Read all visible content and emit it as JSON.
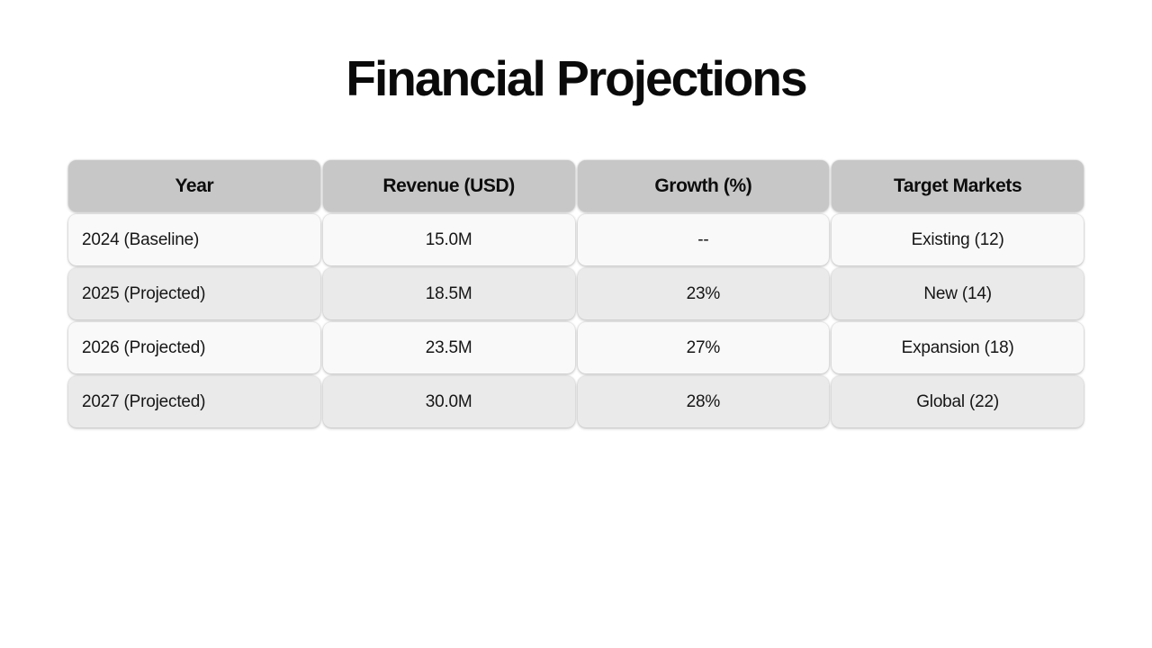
{
  "page_title": "Financial Projections",
  "chart_data": {
    "type": "table",
    "title": "Financial Projections",
    "columns": [
      "Year",
      "Revenue (USD)",
      "Growth (%)",
      "Target Markets"
    ],
    "rows": [
      [
        "2024 (Baseline)",
        "15.0M",
        "--",
        "Existing (12)"
      ],
      [
        "2025 (Projected)",
        "18.5M",
        "23%",
        "New (14)"
      ],
      [
        "2026 (Projected)",
        "23.5M",
        "27%",
        "Expansion (18)"
      ],
      [
        "2027 (Projected)",
        "30.0M",
        "28%",
        "Global (22)"
      ]
    ]
  },
  "colors": {
    "page_background": "#ffffff",
    "header_cell_background": "#c7c7c7",
    "row_light_background": "#f9f9f9",
    "row_dark_background": "#eaeaea",
    "text": "#161616",
    "title_text": "#0a0a0a"
  }
}
